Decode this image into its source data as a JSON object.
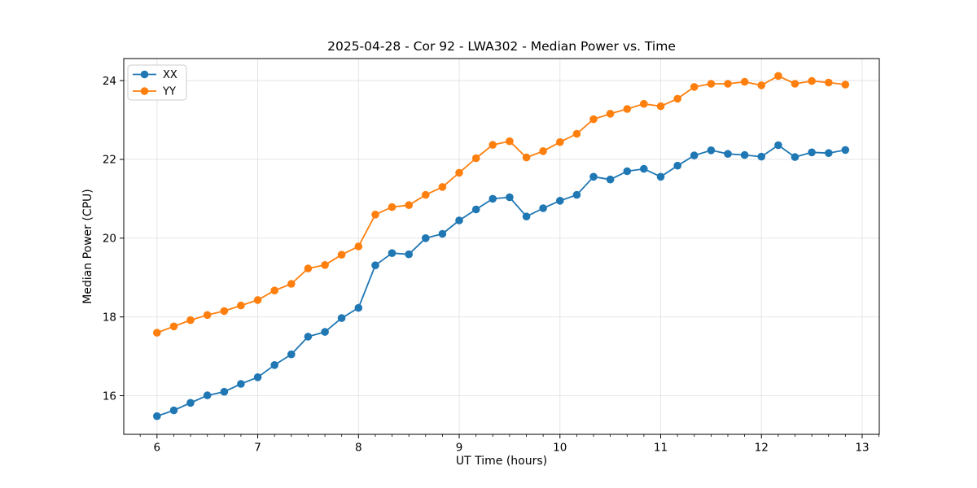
{
  "chart_data": {
    "type": "line",
    "title": "2025-04-28 - Cor 92 - LWA302 - Median Power vs. Time",
    "xlabel": "UT Time (hours)",
    "ylabel": "Median Power (CPU)",
    "x": [
      6.0,
      6.167,
      6.333,
      6.5,
      6.667,
      6.833,
      7.0,
      7.167,
      7.333,
      7.5,
      7.667,
      7.833,
      8.0,
      8.167,
      8.333,
      8.5,
      8.667,
      8.833,
      9.0,
      9.167,
      9.333,
      9.5,
      9.667,
      9.833,
      10.0,
      10.167,
      10.333,
      10.5,
      10.667,
      10.833,
      11.0,
      11.167,
      11.333,
      11.5,
      11.667,
      11.833,
      12.0,
      12.167,
      12.333,
      12.5,
      12.667,
      12.833
    ],
    "series": [
      {
        "name": "XX",
        "color": "#1f77b4",
        "values": [
          15.48,
          15.63,
          15.82,
          16.01,
          16.1,
          16.3,
          16.47,
          16.78,
          17.05,
          17.5,
          17.62,
          17.97,
          18.23,
          19.31,
          19.62,
          19.59,
          20.0,
          20.11,
          20.45,
          20.73,
          21.0,
          21.04,
          20.55,
          20.76,
          20.95,
          21.1,
          21.56,
          21.49,
          21.7,
          21.76,
          21.56,
          21.84,
          22.1,
          22.23,
          22.14,
          22.11,
          22.07,
          22.36,
          22.06,
          22.18,
          22.16,
          22.24
        ]
      },
      {
        "name": "YY",
        "color": "#ff7f0e",
        "values": [
          17.6,
          17.76,
          17.92,
          18.05,
          18.15,
          18.29,
          18.43,
          18.67,
          18.84,
          19.23,
          19.32,
          19.58,
          19.79,
          20.6,
          20.79,
          20.84,
          21.1,
          21.3,
          21.66,
          22.03,
          22.37,
          22.46,
          22.05,
          22.21,
          22.44,
          22.65,
          23.02,
          23.16,
          23.28,
          23.41,
          23.35,
          23.54,
          23.84,
          23.92,
          23.92,
          23.97,
          23.88,
          24.12,
          23.92,
          23.99,
          23.95,
          23.9
        ]
      }
    ],
    "xticks": [
      6,
      7,
      8,
      9,
      10,
      11,
      12,
      13
    ],
    "yticks": [
      16,
      18,
      20,
      22,
      24
    ],
    "xlim": [
      5.67,
      13.17
    ],
    "ylim": [
      15.02,
      24.56
    ],
    "x_minor_tick_step": 0.1667,
    "grid": true,
    "legend_position": "upper left",
    "marker": "circle"
  },
  "colors": {
    "grid": "#e2e2e2",
    "spine": "#000000",
    "text": "#000000",
    "background": "#ffffff",
    "legend_border": "#cccccc",
    "legend_background": "#ffffff"
  }
}
